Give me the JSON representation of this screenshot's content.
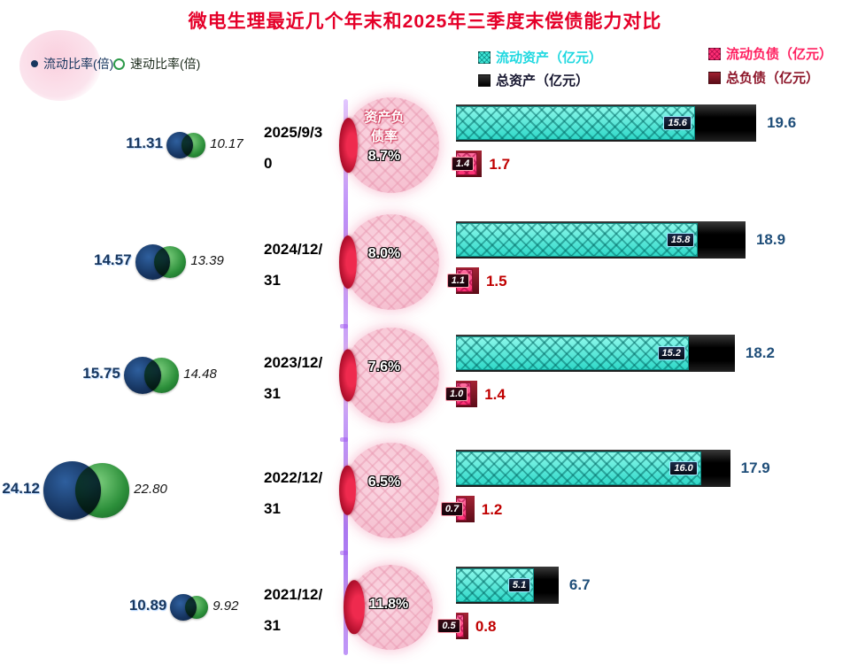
{
  "title": "微电生理最近几个年末和2025年三季度末偿债能力对比",
  "legend": {
    "current_ratio": "流动比率(倍)",
    "quick_ratio": "速动比率(倍)",
    "current_assets": "流动资产（亿元）",
    "total_assets": "总资产（亿元）",
    "current_liabilities": "流动负债（亿元）",
    "total_liabilities": "总负债（亿元）"
  },
  "debt_ratio_label": "资产负债率",
  "colors": {
    "title": "#e50029",
    "current_assets_bar": "#3fe8d8",
    "total_assets_bar": "#000000",
    "current_liabilities_bar": "#ff2e74",
    "total_liabilities_bar": "#8c1220",
    "asset_value_text": "#1f4e79",
    "liability_value_text": "#c00000",
    "timeline": "#9a5cf0",
    "pie_fill": "#f6c3d3",
    "pie_slice": "#d41432"
  },
  "rows": [
    {
      "date": "2025/9/30",
      "current_ratio": "11.31",
      "quick_ratio": "10.17",
      "debt_ratio": "8.7%",
      "current_assets": "15.6",
      "total_assets": "19.6",
      "current_liabilities": "1.4",
      "total_liabilities": "1.7"
    },
    {
      "date": "2024/12/31",
      "current_ratio": "14.57",
      "quick_ratio": "13.39",
      "debt_ratio": "8.0%",
      "current_assets": "15.8",
      "total_assets": "18.9",
      "current_liabilities": "1.1",
      "total_liabilities": "1.5"
    },
    {
      "date": "2023/12/31",
      "current_ratio": "15.75",
      "quick_ratio": "14.48",
      "debt_ratio": "7.6%",
      "current_assets": "15.2",
      "total_assets": "18.2",
      "current_liabilities": "1.0",
      "total_liabilities": "1.4"
    },
    {
      "date": "2022/12/31",
      "current_ratio": "24.12",
      "quick_ratio": "22.80",
      "debt_ratio": "6.5%",
      "current_assets": "16.0",
      "total_assets": "17.9",
      "current_liabilities": "0.7",
      "total_liabilities": "1.2"
    },
    {
      "date": "2021/12/31",
      "current_ratio": "10.89",
      "quick_ratio": "9.92",
      "debt_ratio": "11.8%",
      "current_assets": "5.1",
      "total_assets": "6.7",
      "current_liabilities": "0.5",
      "total_liabilities": "0.8"
    }
  ],
  "chart_data": {
    "type": "bar",
    "title": "微电生理最近几个年末和2025年三季度末偿债能力对比",
    "orientation": "horizontal",
    "grid": false,
    "legend_position": "top",
    "categories": [
      "2025/9/30",
      "2024/12/31",
      "2023/12/31",
      "2022/12/31",
      "2021/12/31"
    ],
    "series": [
      {
        "name": "流动比率(倍)",
        "values": [
          11.31,
          14.57,
          15.75,
          24.12,
          10.89
        ]
      },
      {
        "name": "速动比率(倍)",
        "values": [
          10.17,
          13.39,
          14.48,
          22.8,
          9.92
        ]
      },
      {
        "name": "流动资产（亿元）",
        "values": [
          15.6,
          15.8,
          15.2,
          16.0,
          5.1
        ]
      },
      {
        "name": "总资产（亿元）",
        "values": [
          19.6,
          18.9,
          18.2,
          17.9,
          6.7
        ]
      },
      {
        "name": "流动负债（亿元）",
        "values": [
          1.4,
          1.1,
          1.0,
          0.7,
          0.5
        ]
      },
      {
        "name": "总负债（亿元）",
        "values": [
          1.7,
          1.5,
          1.4,
          1.2,
          0.8
        ]
      },
      {
        "name": "资产负债率(%)",
        "values": [
          8.7,
          8.0,
          7.6,
          6.5,
          11.8
        ]
      }
    ]
  }
}
